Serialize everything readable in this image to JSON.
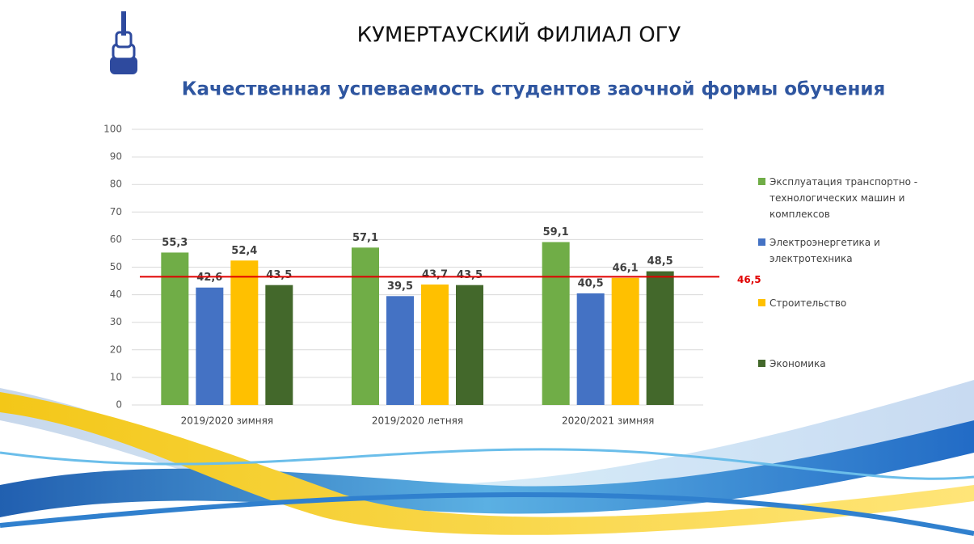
{
  "header": "КУМЕРТАУСКИЙ ФИЛИАЛ ОГУ",
  "chart_data": {
    "type": "bar",
    "title": "Качественная успеваемость студентов заочной формы обучения",
    "categories": [
      "2019/2020 зимняя",
      "2019/2020 летняя",
      "2020/2021 зимняя"
    ],
    "series": [
      {
        "name": "Эксплуатация транспортно - технологических машин и комплексов",
        "color": "#70ad47",
        "values": [
          55.3,
          57.1,
          59.1
        ],
        "value_labels": [
          "55,3",
          "57,1",
          "59,1"
        ]
      },
      {
        "name": "Электроэнергетика и электротехника",
        "color": "#4472c4",
        "values": [
          42.6,
          39.5,
          40.5
        ],
        "value_labels": [
          "42,6",
          "39,5",
          "40,5"
        ]
      },
      {
        "name": "Строительство",
        "color": "#ffc000",
        "values": [
          52.4,
          43.7,
          46.1
        ],
        "value_labels": [
          "52,4",
          "43,7",
          "46,1"
        ]
      },
      {
        "name": "Экономика",
        "color": "#43682b",
        "values": [
          43.5,
          43.5,
          48.5
        ],
        "value_labels": [
          "43,5",
          "43,5",
          "48,5"
        ]
      }
    ],
    "reference_line": {
      "value": 46.5,
      "label": "46,5",
      "color": "#e00000"
    },
    "ylim": [
      0,
      100
    ],
    "yticks": [
      0,
      10,
      20,
      30,
      40,
      50,
      60,
      70,
      80,
      90,
      100
    ],
    "grid": true,
    "legend": "right"
  }
}
